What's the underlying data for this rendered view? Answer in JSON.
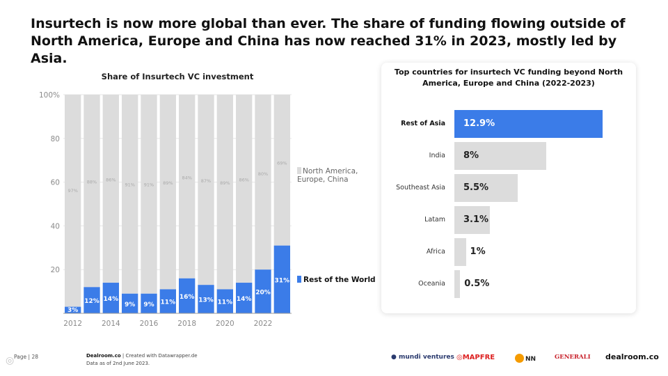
{
  "headline": "Insurtech is now more global than ever. The share of funding flowing outside of North America, Europe and China has now reached 31% in 2023, mostly led by Asia.",
  "chart_data": [
    {
      "type": "bar",
      "stacked": true,
      "title": "Share of Insurtech VC investment",
      "categories": [
        "2012",
        "2013",
        "2014",
        "2015",
        "2016",
        "2017",
        "2018",
        "2019",
        "2020",
        "2021",
        "2022",
        "2023"
      ],
      "x_tick_labels": [
        "2012",
        "",
        "2014",
        "",
        "2016",
        "",
        "2018",
        "",
        "2020",
        "",
        "2022",
        ""
      ],
      "series": [
        {
          "name": "Rest of the World",
          "color": "#3b7ce8",
          "values": [
            3,
            12,
            14,
            9,
            9,
            11,
            16,
            13,
            11,
            14,
            20,
            31
          ],
          "labels": [
            "3%",
            "12%",
            "14%",
            "9%",
            "9%",
            "11%",
            "16%",
            "13%",
            "11%",
            "14%",
            "20%",
            "31%"
          ]
        },
        {
          "name": "North America, Europe, China",
          "color": "#dcdcdc",
          "values": [
            97,
            88,
            86,
            91,
            91,
            89,
            84,
            87,
            89,
            86,
            80,
            69
          ],
          "labels": [
            "97%",
            "88%",
            "86%",
            "91%",
            "91%",
            "89%",
            "84%",
            "87%",
            "89%",
            "86%",
            "80%",
            "69%"
          ]
        }
      ],
      "ylim": [
        0,
        100
      ],
      "y_ticks": [
        20,
        40,
        60,
        80,
        100
      ],
      "y_tick_labels": [
        "20",
        "40",
        "60",
        "80",
        "100%"
      ],
      "xlabel": "",
      "ylabel": "",
      "grid": true,
      "legend": {
        "top_label": "North America, Europe, China",
        "bottom_label": "Rest of the World"
      }
    },
    {
      "type": "bar",
      "orientation": "horizontal",
      "title": "Top countries for insurtech VC funding beyond North America, Europe and China (2022-2023)",
      "categories": [
        "Rest of Asia",
        "India",
        "Southeast Asia",
        "Latam",
        "Africa",
        "Oceania"
      ],
      "values": [
        12.9,
        8,
        5.5,
        3.1,
        1,
        0.5
      ],
      "labels": [
        "12.9%",
        "8%",
        "5.5%",
        "3.1%",
        "1%",
        "0.5%"
      ],
      "highlight": "Rest of Asia",
      "xlim": [
        0,
        13
      ]
    }
  ],
  "footer": {
    "page": "Page | 28",
    "source_brand": "Dealroom.co",
    "source_rest": " | Created with Datawrapper.de",
    "source_date": "Data as of 2nd June 2023."
  },
  "logos": {
    "mundi": "mundi ventures",
    "mapfre": "MAPFRE",
    "nn": "NN",
    "generali": "GENERALI",
    "dealroom": "dealroom.co"
  },
  "colors": {
    "highlight": "#3b7ce8",
    "base": "#dcdcdc"
  }
}
